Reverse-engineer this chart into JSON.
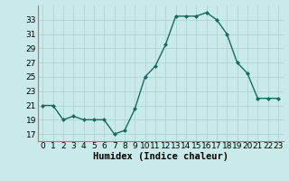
{
  "x": [
    0,
    1,
    2,
    3,
    4,
    5,
    6,
    7,
    8,
    9,
    10,
    11,
    12,
    13,
    14,
    15,
    16,
    17,
    18,
    19,
    20,
    21,
    22,
    23
  ],
  "y": [
    21,
    21,
    19,
    19.5,
    19,
    19,
    19,
    17,
    17.5,
    20.5,
    25,
    26.5,
    29.5,
    33.5,
    33.5,
    33.5,
    34,
    33,
    31,
    27,
    25.5,
    22,
    22,
    22
  ],
  "line_color": "#1a6b5e",
  "marker": "D",
  "marker_size": 2,
  "bg_color": "#c8eae8",
  "grid_color": "#afd4d0",
  "xlabel": "Humidex (Indice chaleur)",
  "xlim": [
    -0.5,
    23.5
  ],
  "ylim": [
    16,
    35
  ],
  "yticks": [
    17,
    19,
    21,
    23,
    25,
    27,
    29,
    31,
    33
  ],
  "xticks": [
    0,
    1,
    2,
    3,
    4,
    5,
    6,
    7,
    8,
    9,
    10,
    11,
    12,
    13,
    14,
    15,
    16,
    17,
    18,
    19,
    20,
    21,
    22,
    23
  ],
  "tick_label_fontsize": 6.5,
  "xlabel_fontsize": 7.5,
  "linewidth": 1.0
}
